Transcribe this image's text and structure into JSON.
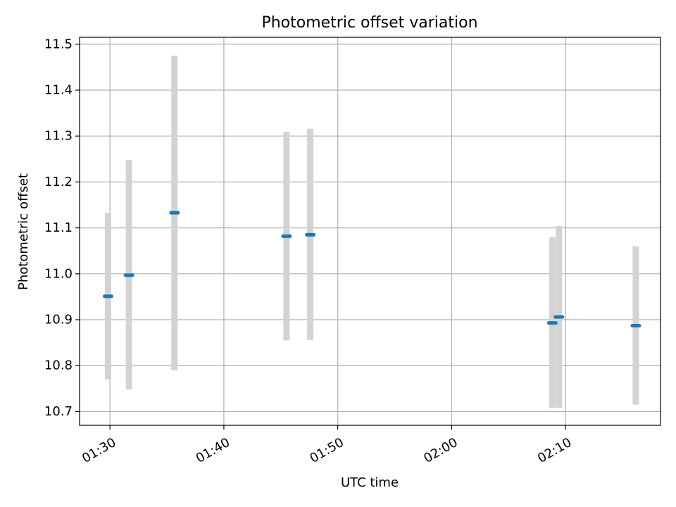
{
  "chart_data": {
    "type": "scatter",
    "title": "Photometric offset variation",
    "xlabel": "UTC time",
    "ylabel": "Photometric offset",
    "x_unit": "UTC time (HH:MM)",
    "xlim": [
      "01:27:20",
      "02:18:20"
    ],
    "ylim": [
      10.67,
      11.515
    ],
    "xticks": [
      "01:30",
      "01:40",
      "01:50",
      "02:00",
      "02:10"
    ],
    "yticks": [
      10.7,
      10.8,
      10.9,
      11.0,
      11.1,
      11.2,
      11.3,
      11.4,
      11.5
    ],
    "ytick_labels": [
      "10.7",
      "10.8",
      "10.9",
      "11.0",
      "11.1",
      "11.2",
      "11.3",
      "11.4",
      "11.5"
    ],
    "grid": true,
    "series": [
      {
        "points": [
          {
            "t": "01:29:50",
            "y": 10.951,
            "ylo": 10.77,
            "yhi": 11.133
          },
          {
            "t": "01:31:40",
            "y": 10.997,
            "ylo": 10.748,
            "yhi": 11.248
          },
          {
            "t": "01:35:40",
            "y": 11.133,
            "ylo": 10.79,
            "yhi": 11.475
          },
          {
            "t": "01:45:30",
            "y": 11.082,
            "ylo": 10.855,
            "yhi": 11.309
          },
          {
            "t": "01:47:35",
            "y": 11.085,
            "ylo": 10.856,
            "yhi": 11.316
          },
          {
            "t": "02:08:50",
            "y": 10.893,
            "ylo": 10.708,
            "yhi": 11.08
          },
          {
            "t": "02:09:25",
            "y": 10.906,
            "ylo": 10.708,
            "yhi": 11.104
          },
          {
            "t": "02:16:10",
            "y": 10.887,
            "ylo": 10.715,
            "yhi": 11.06
          }
        ]
      }
    ]
  },
  "colors": {
    "marker": "#1f77b4",
    "errorbar": "#d3d3d3",
    "grid": "#b0b0b0",
    "axes": "#000000"
  }
}
